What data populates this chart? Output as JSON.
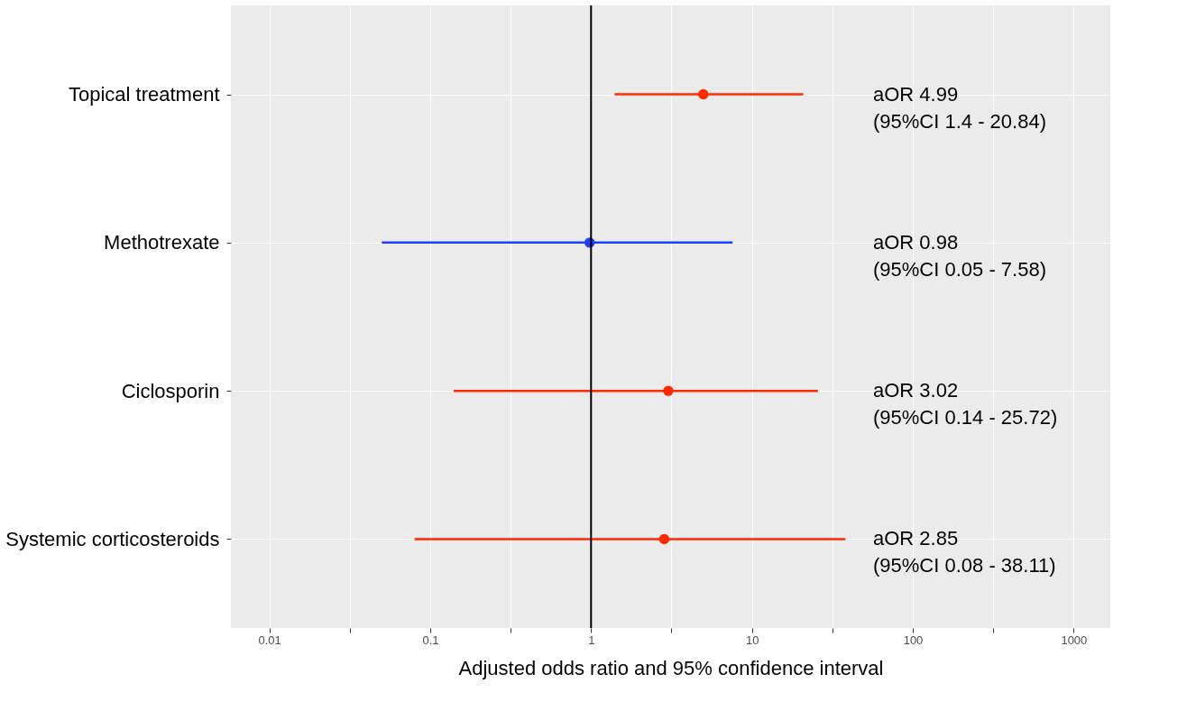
{
  "chart_data": {
    "type": "scatter",
    "orientation": "horizontal",
    "xlabel": "Adjusted odds ratio and 95% confidence interval",
    "categories": [
      "Topical treatment",
      "Methotrexate",
      "Ciclosporin",
      "Systemic corticosteroids"
    ],
    "values": [
      4.99,
      0.98,
      3.02,
      2.85
    ],
    "errors": [
      [
        1.4,
        20.84
      ],
      [
        0.05,
        7.58
      ],
      [
        0.14,
        25.72
      ],
      [
        0.08,
        38.11
      ]
    ],
    "colors": [
      "#ff2a00",
      "#1f3fff",
      "#ff2a00",
      "#ff2a00"
    ],
    "log": "x",
    "xlim": [
      0.00577,
      1690
    ],
    "xticks": [
      0.01,
      {
        "value": 0.0316,
        "label": null
      },
      0.1,
      {
        "value": 0.316,
        "label": null
      },
      1,
      {
        "value": 3.16,
        "label": null
      },
      10,
      {
        "value": 31.6,
        "label": null
      },
      100,
      {
        "value": 316,
        "label": null
      },
      1000
    ],
    "ref_lines": [
      {
        "axis": "x",
        "value": 1,
        "color": "#000000"
      }
    ],
    "annotations": [
      "aOR 4.99\n(95%CI 1.4 - 20.84)",
      "aOR 0.98\n(95%CI 0.05 - 7.58)",
      "aOR 3.02\n(95%CI 0.14 - 25.72)",
      "aOR 2.85\n(95%CI 0.08 - 38.11)"
    ],
    "grid": true,
    "marker": "circle"
  }
}
